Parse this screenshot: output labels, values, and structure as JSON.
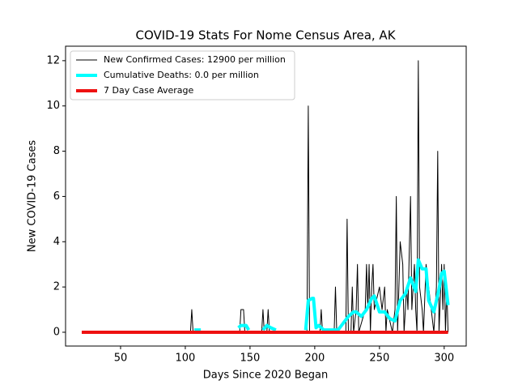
{
  "chart_data": {
    "type": "line",
    "title": "COVID-19 Stats For Nome Census Area, AK",
    "xlabel": "Days Since 2020 Began",
    "ylabel": "New COVID-19 Cases",
    "xlim": [
      7.5,
      317
    ],
    "ylim": [
      -0.61,
      12.64
    ],
    "xticks": [
      50,
      100,
      150,
      200,
      250,
      300
    ],
    "yticks": [
      0,
      2,
      4,
      6,
      8,
      10,
      12
    ],
    "legend": "upper left",
    "series": [
      {
        "name": "New Confirmed Cases: 12900 per million",
        "color": "#000000",
        "width": 1,
        "x": [
          20,
          104,
          105,
          106,
          142,
          143,
          145,
          146,
          159,
          160,
          161,
          163,
          164,
          165,
          194,
          195,
          196,
          204,
          205,
          206,
          215,
          216,
          217,
          224,
          225,
          226,
          228,
          229,
          230,
          232,
          233,
          234,
          239,
          240,
          241,
          242,
          243,
          244,
          245,
          246,
          250,
          252,
          254,
          255,
          256,
          260,
          262,
          263,
          264,
          265,
          266,
          268,
          269,
          271,
          272,
          274,
          275,
          277,
          278,
          279,
          280,
          281,
          283,
          284,
          286,
          288,
          290,
          292,
          294,
          295,
          296,
          298,
          299,
          300,
          301,
          302,
          303
        ],
        "values": [
          0,
          0,
          1,
          0,
          0,
          1,
          1,
          0,
          0,
          1,
          0,
          0,
          1,
          0,
          0,
          10,
          0,
          0,
          1,
          0,
          0,
          2,
          0,
          0,
          5,
          0,
          0,
          2,
          0,
          1,
          3,
          0,
          1,
          3,
          1,
          3,
          0,
          2,
          3,
          1,
          2,
          1,
          2,
          0,
          1,
          0,
          1,
          6,
          0,
          2,
          4,
          3,
          0,
          2,
          1,
          6,
          1,
          3,
          1,
          0,
          12,
          2,
          1,
          0,
          3,
          2,
          1,
          0,
          2,
          8,
          0,
          3,
          1,
          3,
          0,
          2,
          0
        ]
      },
      {
        "name": "Cumulative Deaths: 0.0 per million",
        "color": "#00ffff",
        "width": 4,
        "x": [
          107,
          112,
          113,
          141,
          143,
          147,
          149,
          150,
          160,
          163,
          166,
          170,
          171,
          193,
          195,
          198,
          199,
          201,
          203,
          207,
          212,
          218,
          222,
          226,
          230,
          232,
          236,
          240,
          244,
          246,
          250,
          254,
          258,
          262,
          266,
          270,
          274,
          276,
          278,
          280,
          283,
          286,
          288,
          292,
          296,
          298,
          300,
          303
        ],
        "values": [
          0.1,
          0.1,
          null,
          0.2,
          0.3,
          0.3,
          0.1,
          null,
          0.1,
          0.3,
          0.2,
          0.1,
          null,
          0.1,
          1.4,
          1.5,
          1.5,
          0.2,
          0.3,
          0.1,
          0.1,
          0.1,
          0.4,
          0.7,
          0.9,
          0.9,
          0.7,
          1.0,
          1.5,
          1.6,
          0.9,
          0.9,
          0.6,
          0.5,
          1.4,
          1.7,
          2.4,
          2.1,
          1.8,
          3.2,
          2.8,
          2.8,
          1.4,
          0.9,
          1.9,
          2.6,
          2.7,
          1.2
        ]
      },
      {
        "name": "7 Day Case Average",
        "color": "#ee1111",
        "width": 4,
        "x": [
          20,
          303
        ],
        "values": [
          0,
          0
        ]
      }
    ]
  }
}
